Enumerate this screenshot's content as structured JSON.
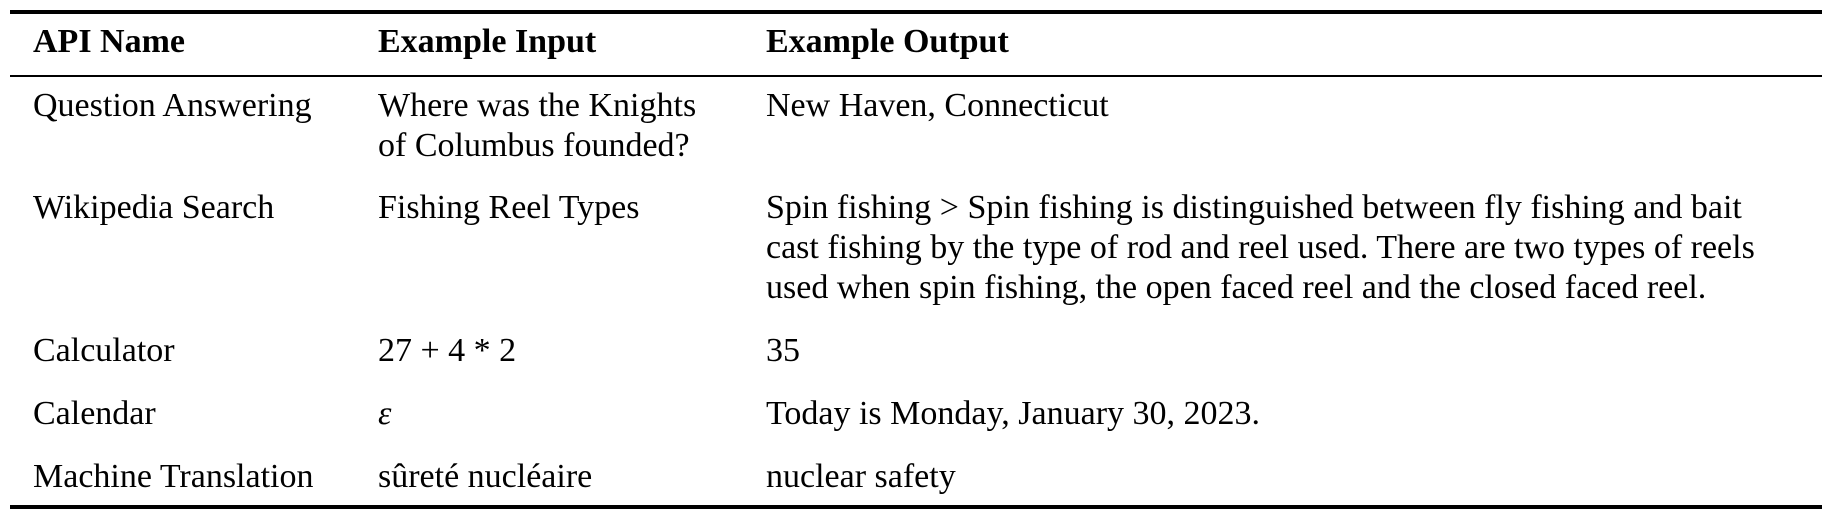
{
  "table": {
    "headers": [
      "API Name",
      "Example Input",
      "Example Output"
    ],
    "rows": [
      {
        "api": "Question Answering",
        "input_lines": [
          "Where was the Knights",
          "of Columbus founded?"
        ],
        "output_lines": [
          "New Haven, Connecticut"
        ]
      },
      {
        "api": "Wikipedia Search",
        "input_lines": [
          "Fishing Reel Types"
        ],
        "output_lines": [
          "Spin fishing > Spin fishing is distinguished between fly fishing and bait",
          "cast fishing by the type of rod and reel used. There are two types of reels",
          "used when spin fishing, the open faced reel and the closed faced reel."
        ]
      },
      {
        "api": "Calculator",
        "input_lines": [
          "27 + 4 * 2"
        ],
        "output_lines": [
          "35"
        ]
      },
      {
        "api": "Calendar",
        "input_lines": [
          "ε"
        ],
        "output_lines": [
          "Today is Monday, January 30, 2023."
        ]
      },
      {
        "api": "Machine Translation",
        "input_lines": [
          "sûreté nucléaire"
        ],
        "output_lines": [
          "nuclear safety"
        ]
      }
    ]
  }
}
